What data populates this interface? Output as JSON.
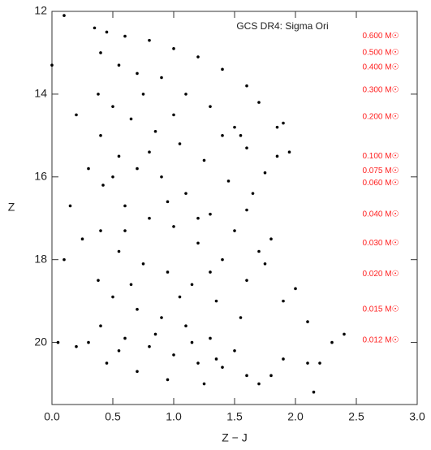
{
  "chart_data": {
    "type": "scatter",
    "title": "GCS DR4: Sigma Ori",
    "x_label": "Z − J",
    "y_label": "Z",
    "xlim": [
      0,
      3
    ],
    "ylim": [
      12,
      21.5
    ],
    "y_inverted": true,
    "xticks": [
      {
        "value": 0,
        "label": "0.0"
      },
      0.5,
      {
        "value": 1,
        "label": "1.0"
      },
      1.5,
      {
        "value": 2,
        "label": "2.0"
      },
      2.5,
      {
        "value": 3,
        "label": "3.0"
      }
    ],
    "yticks": [
      12,
      14,
      16,
      18,
      20
    ],
    "color": "#000000",
    "x": [
      0.35,
      0.45,
      0.6,
      0.8,
      1.0,
      1.2,
      1.4,
      1.6,
      1.7,
      1.85,
      1.9,
      0.4,
      0.55,
      0.7,
      0.9,
      1.1,
      1.3,
      1.5,
      1.6,
      1.75,
      1.85,
      0.38,
      0.5,
      0.65,
      0.85,
      1.05,
      1.25,
      1.45,
      1.6,
      0.4,
      0.55,
      0.7,
      0.9,
      1.1,
      1.3,
      1.5,
      0.42,
      0.6,
      0.8,
      1.0,
      1.2,
      1.4,
      1.6,
      0.4,
      0.55,
      0.75,
      0.95,
      1.15,
      1.35,
      1.55,
      0.38,
      0.5,
      0.7,
      0.9,
      1.1,
      1.3,
      1.5,
      0.4,
      0.6,
      0.8,
      1.0,
      1.2,
      1.4,
      1.6,
      0.45,
      0.7,
      0.95,
      1.25,
      0.2,
      0.1,
      0.05,
      0.15,
      0.2,
      0.0,
      0.1,
      1.8,
      1.9,
      2.1,
      2.2,
      2.3,
      2.4,
      2.1,
      1.9,
      1.75,
      1.7,
      1.8,
      2.0,
      1.95,
      0.3,
      0.25,
      0.3,
      1.0,
      0.8,
      1.2,
      0.65,
      1.05,
      0.85,
      1.15,
      0.55,
      1.3,
      0.95,
      0.6,
      1.35,
      2.15,
      1.7,
      0.5,
      0.75,
      1.55,
      1.4,
      1.65
    ],
    "values": [
      12.4,
      12.5,
      12.6,
      12.7,
      12.9,
      13.1,
      13.4,
      13.8,
      14.2,
      14.8,
      14.7,
      13.0,
      13.3,
      13.5,
      13.6,
      14.0,
      14.3,
      14.8,
      15.3,
      15.9,
      15.5,
      14.0,
      14.3,
      14.6,
      14.9,
      15.2,
      15.6,
      16.1,
      16.8,
      15.0,
      15.5,
      15.8,
      16.0,
      16.4,
      16.9,
      17.3,
      16.2,
      16.7,
      17.0,
      17.2,
      17.6,
      18.0,
      18.5,
      17.3,
      17.8,
      18.1,
      18.3,
      18.6,
      19.0,
      19.4,
      18.5,
      18.9,
      19.2,
      19.4,
      19.6,
      19.9,
      20.2,
      19.6,
      19.9,
      20.1,
      20.3,
      20.5,
      20.6,
      20.8,
      20.5,
      20.7,
      20.9,
      21.0,
      20.1,
      18.0,
      20.0,
      16.7,
      14.5,
      13.3,
      12.1,
      20.8,
      20.4,
      20.5,
      20.5,
      20.0,
      19.8,
      19.5,
      19.0,
      18.1,
      17.8,
      17.5,
      18.7,
      15.4,
      20.0,
      17.5,
      15.8,
      14.5,
      15.4,
      17.0,
      18.6,
      18.9,
      19.8,
      20.0,
      20.2,
      18.3,
      16.6,
      17.3,
      20.4,
      21.2,
      21.0,
      16.0,
      14.0,
      15.0,
      15.0,
      16.4
    ],
    "mass_label_color": "#ff2020",
    "mass_label_x": 2.7,
    "mass_labels": [
      {
        "text": "0.600 M☉",
        "z": 12.6
      },
      {
        "text": "0.500 M☉",
        "z": 13.0
      },
      {
        "text": "0.400 M☉",
        "z": 13.35
      },
      {
        "text": "0.300 M☉",
        "z": 13.9
      },
      {
        "text": "0.200 M☉",
        "z": 14.55
      },
      {
        "text": "0.100 M☉",
        "z": 15.5
      },
      {
        "text": "0.075 M☉",
        "z": 15.85
      },
      {
        "text": "0.060 M☉",
        "z": 16.15
      },
      {
        "text": "0.040 M☉",
        "z": 16.9
      },
      {
        "text": "0.030 M☉",
        "z": 17.6
      },
      {
        "text": "0.020 M☉",
        "z": 18.35
      },
      {
        "text": "0.015 M☉",
        "z": 19.2
      },
      {
        "text": "0.012 M☉",
        "z": 19.95
      }
    ]
  }
}
